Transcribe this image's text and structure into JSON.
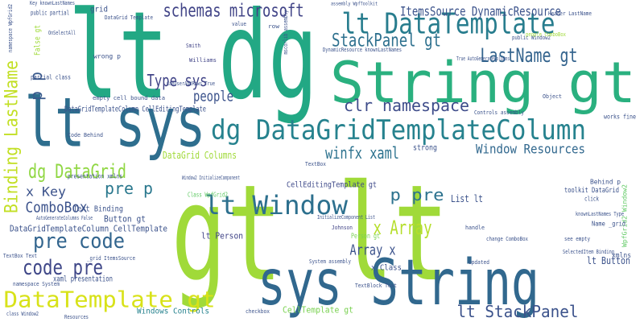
{
  "words": [
    "gt lt",
    "lt dg",
    "String gt",
    "lt sys",
    "sys String",
    "dg DataGridTemplateColumn",
    "lt DataTemplate",
    "schemas microsoft",
    "ItemsSource DynamicResource",
    "StackPanel gt",
    "LastName gt",
    "clr namespace",
    "Type sys",
    "people",
    "winfx xaml",
    "Window Resources",
    "dg DataGrid",
    "x Key",
    "pre p",
    "p pre",
    "lt Window",
    "ComboBox",
    "x Array",
    "pre code",
    "code pre",
    "Array x",
    "DataTemplate gt",
    "lt StackPanel",
    "Binding LastName",
    "p p",
    "lt Person",
    "lt Button",
    "Button gt",
    "List lt",
    "Windows Controls",
    "CellTemplate gt",
    "Class WpfGrid2",
    "DataGrid Columns",
    "CellEditingTemplate gt",
    "DataGridTemplateColumn CellTemplate",
    "x Class",
    "Text Binding",
    "Johnson",
    "Smith",
    "Williams",
    "strong",
    "xmlns",
    "updated",
    "TextBox",
    "presentation xmlns",
    "xaml presentation",
    "wrong p",
    "partial class",
    "Code Behind",
    "Controls assembly",
    "works fine",
    "grid",
    "DataGrid Template",
    "Key knownLastNames",
    "public partial",
    "public Window2",
    "Header LastName",
    "assembly WpfToolkit",
    "False gt",
    "namespace WpfGrid2",
    "WpfGrid2 Window2",
    "toolkit DataGrid",
    "Behind p",
    "Name _grid",
    "SelectedItem Binding",
    "Person gt",
    "InitializeComponent List",
    "System assembly",
    "Window2 InitializeComponent",
    "people ComboBox",
    "checkbox",
    "Object",
    "Resources",
    "click",
    "handle",
    "change ComboBox",
    "AutoGenerateColumns False",
    "knownLastNames Type",
    "True AutoGenerateColumns",
    "CanUserAddRows True",
    "empty cell bound data",
    "TextBox Text",
    "_grid ItemsSource",
    "namespace System",
    "class Window2",
    "TextBlock Text",
    "mscorlib assembly",
    "row",
    "value",
    "DataGridTemplateColumn CellEditingTemplate",
    "DynamicResource knownLastNames",
    "see empty",
    "OnSelectAll"
  ]
}
